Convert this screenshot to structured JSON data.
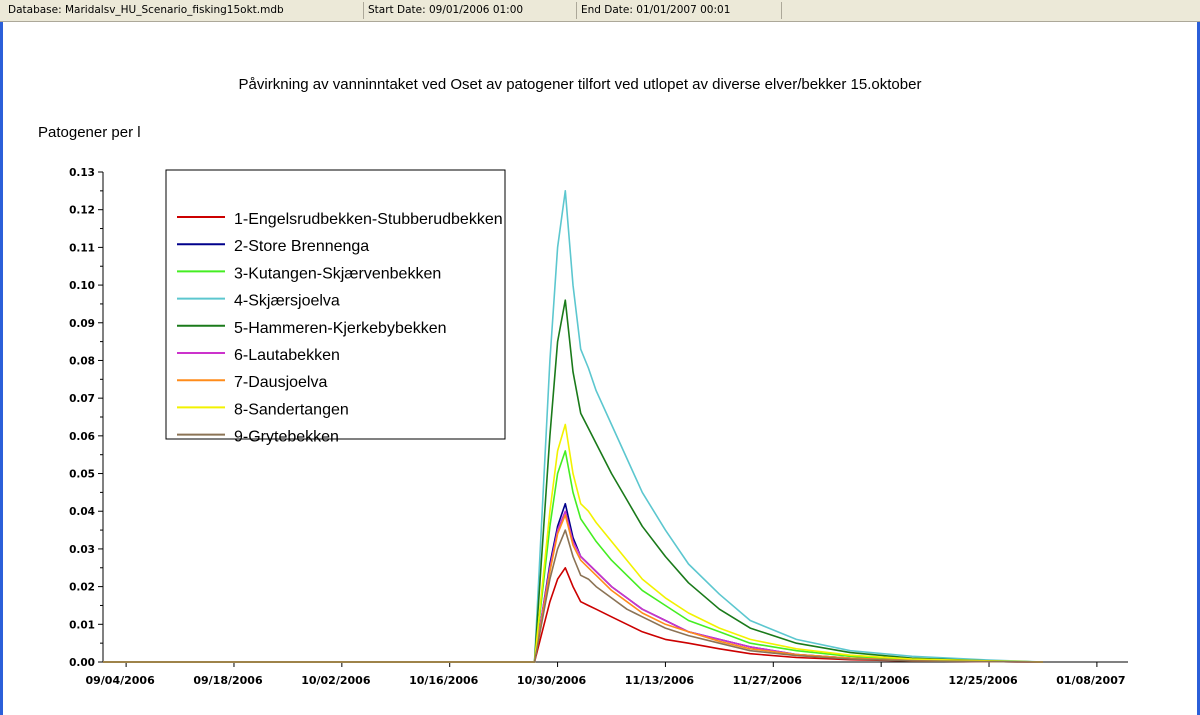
{
  "status_bar": {
    "database": "Database: Maridalsv_HU_Scenario_fisking15okt.mdb",
    "start_date": "Start Date: 09/01/2006 01:00",
    "end_date": "End Date: 01/01/2007 00:01"
  },
  "chart_data": {
    "type": "line",
    "title": "Påvirkning av vanninntaket ved Oset av patogener tilfort ved utlopet av diverse elver/bekker 15.oktober",
    "ylabel": "Patogener per l",
    "xlabel": "",
    "x_ticks": [
      "09/04/2006",
      "09/18/2006",
      "10/02/2006",
      "10/16/2006",
      "10/30/2006",
      "11/13/2006",
      "11/27/2006",
      "12/11/2006",
      "12/25/2006",
      "01/08/2007"
    ],
    "y_ticks": [
      "0.00",
      "0.01",
      "0.02",
      "0.03",
      "0.04",
      "0.05",
      "0.06",
      "0.07",
      "0.08",
      "0.09",
      "0.10",
      "0.11",
      "0.12",
      "0.13"
    ],
    "xlim": [
      "09/01/2006",
      "01/11/2007"
    ],
    "ylim": [
      0,
      0.13
    ],
    "grid": false,
    "legend_position": "top-left",
    "x": [
      "09/01/2006",
      "10/27/2006",
      "10/28/2006",
      "10/29/2006",
      "10/30/2006",
      "10/31/2006",
      "11/01/2006",
      "11/02/2006",
      "11/03/2006",
      "11/04/2006",
      "11/06/2006",
      "11/08/2006",
      "11/10/2006",
      "11/13/2006",
      "11/16/2006",
      "11/20/2006",
      "11/24/2006",
      "11/30/2006",
      "12/07/2006",
      "12/15/2006",
      "12/25/2006",
      "01/01/2007"
    ],
    "series": [
      {
        "name": "1-Engelsrudbekken-Stubberudbekken",
        "color": "#cc0000",
        "values": [
          0,
          0,
          0.008,
          0.016,
          0.022,
          0.025,
          0.02,
          0.016,
          0.015,
          0.014,
          0.012,
          0.01,
          0.008,
          0.006,
          0.005,
          0.0035,
          0.0022,
          0.0012,
          0.0006,
          0.0003,
          0.0001,
          0
        ]
      },
      {
        "name": "2-Store Brennenga",
        "color": "#00008b",
        "values": [
          0,
          0,
          0.013,
          0.026,
          0.036,
          0.042,
          0.033,
          0.028,
          0.026,
          0.024,
          0.02,
          0.017,
          0.014,
          0.011,
          0.008,
          0.006,
          0.004,
          0.002,
          0.001,
          0.0004,
          0.0001,
          0
        ]
      },
      {
        "name": "3-Kutangen-Skjærvenbekken",
        "color": "#44ee22",
        "values": [
          0,
          0,
          0.018,
          0.036,
          0.05,
          0.056,
          0.045,
          0.038,
          0.035,
          0.032,
          0.027,
          0.023,
          0.019,
          0.015,
          0.011,
          0.008,
          0.005,
          0.003,
          0.0015,
          0.0006,
          0.0002,
          0
        ]
      },
      {
        "name": "4-Skjærsjoelva",
        "color": "#5cc7cf",
        "values": [
          0,
          0,
          0.04,
          0.08,
          0.11,
          0.125,
          0.1,
          0.083,
          0.078,
          0.072,
          0.063,
          0.054,
          0.045,
          0.035,
          0.026,
          0.018,
          0.011,
          0.006,
          0.003,
          0.0015,
          0.0005,
          0
        ]
      },
      {
        "name": "5-Hammeren-Kjerkebybekken",
        "color": "#1a7a1a",
        "values": [
          0,
          0,
          0.03,
          0.06,
          0.085,
          0.096,
          0.077,
          0.066,
          0.062,
          0.058,
          0.05,
          0.043,
          0.036,
          0.028,
          0.021,
          0.014,
          0.009,
          0.005,
          0.0025,
          0.001,
          0.0003,
          0
        ]
      },
      {
        "name": "6-Lautabekken",
        "color": "#cc33cc",
        "values": [
          0,
          0,
          0.013,
          0.025,
          0.035,
          0.04,
          0.032,
          0.028,
          0.026,
          0.024,
          0.02,
          0.017,
          0.014,
          0.011,
          0.008,
          0.006,
          0.004,
          0.002,
          0.001,
          0.0004,
          0.0001,
          0
        ]
      },
      {
        "name": "7-Dausjoelva",
        "color": "#ff8c1a",
        "values": [
          0,
          0,
          0.012,
          0.024,
          0.034,
          0.039,
          0.031,
          0.027,
          0.025,
          0.023,
          0.019,
          0.016,
          0.013,
          0.01,
          0.008,
          0.0055,
          0.0035,
          0.002,
          0.001,
          0.0004,
          0.0001,
          0
        ]
      },
      {
        "name": "8-Sandertangen",
        "color": "#f2f200",
        "values": [
          0,
          0,
          0.02,
          0.04,
          0.056,
          0.063,
          0.05,
          0.042,
          0.04,
          0.037,
          0.032,
          0.027,
          0.022,
          0.017,
          0.013,
          0.009,
          0.006,
          0.0035,
          0.0018,
          0.0008,
          0.0003,
          0
        ]
      },
      {
        "name": "9-Grytebekken",
        "color": "#8b7355",
        "values": [
          0,
          0,
          0.011,
          0.022,
          0.03,
          0.035,
          0.028,
          0.023,
          0.022,
          0.02,
          0.017,
          0.014,
          0.012,
          0.009,
          0.007,
          0.005,
          0.003,
          0.0017,
          0.0008,
          0.0003,
          0.0001,
          0
        ]
      }
    ]
  }
}
